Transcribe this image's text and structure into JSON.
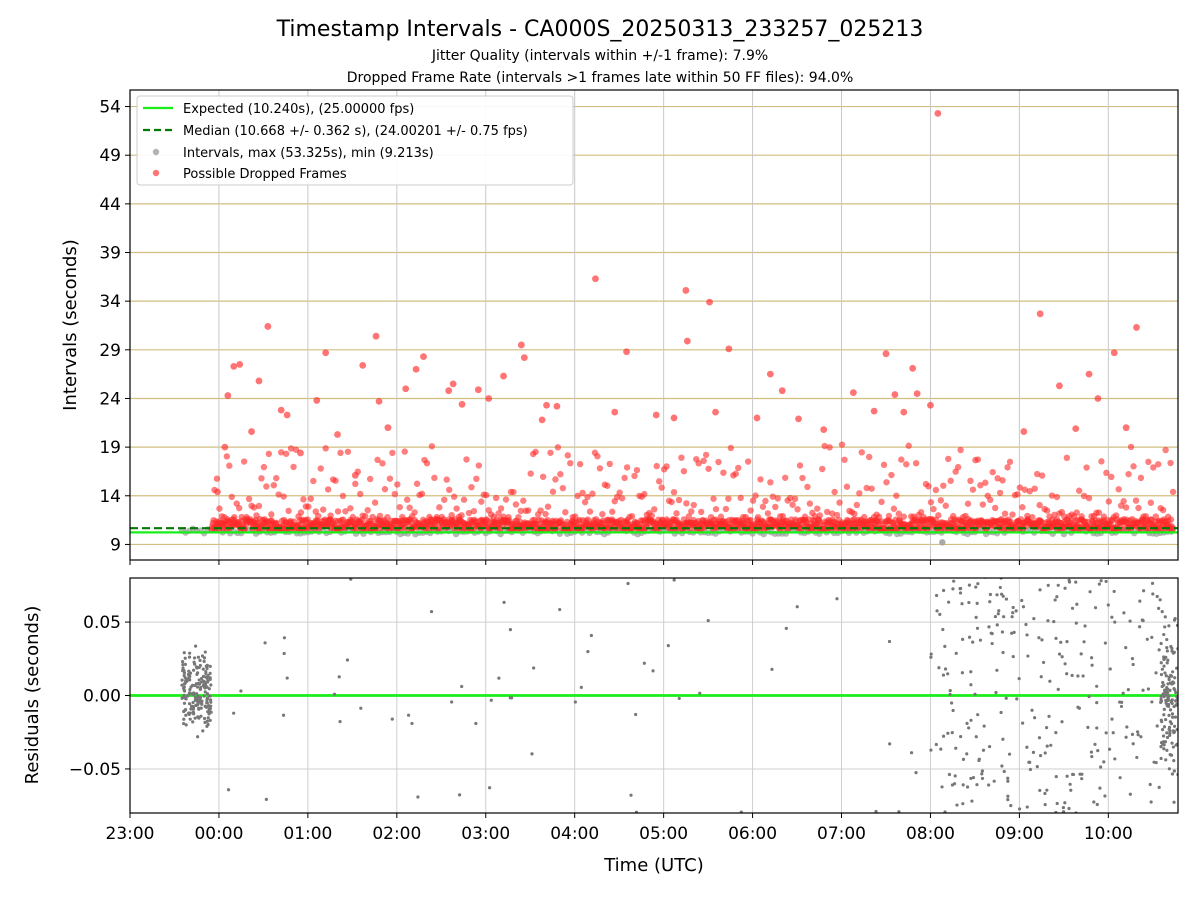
{
  "figure": {
    "title": "Timestamp Intervals - CA000S_20250313_233257_025213",
    "subtitle_jitter": "Jitter Quality (intervals within +/-1 frame): 7.9%",
    "subtitle_dropped": "Dropped Frame Rate (intervals >1 frames late within 50 FF files): 94.0%",
    "xlabel": "Time (UTC)"
  },
  "chart_data": [
    {
      "type": "scatter",
      "name": "intervals",
      "ylabel": "Intervals (seconds)",
      "ylim": [
        7.4,
        55.7
      ],
      "yticks": [
        9,
        14,
        19,
        24,
        29,
        34,
        39,
        44,
        49,
        54
      ],
      "ytick_labels": [
        "9",
        "14",
        "19",
        "24",
        "29",
        "34",
        "39",
        "44",
        "49",
        "54"
      ],
      "xlim": [
        "2025-03-13T23:00",
        "2025-03-14T10:47"
      ],
      "grid": true,
      "legend_position": "top-left",
      "legend": [
        "Expected (10.240s), (25.00000 fps)",
        "Median (10.668 +/- 0.362 s), (24.00201 +/- 0.75 fps)",
        "Intervals, max (53.325s), min (9.213s)",
        "Possible Dropped Frames"
      ],
      "expected_interval": 10.24,
      "median_interval": 10.668,
      "max_interval": 53.325,
      "min_interval": 9.213,
      "colors": {
        "expected": "#18ee18",
        "median": "#007a00",
        "intervals": "#a0a0a0",
        "dropped": "#ff2a2a",
        "gridline_y": "#d2be80",
        "gridline_x": "#c8c8c8"
      },
      "dropped_outliers": [
        {
          "t": "2025-03-13T23:59",
          "y": 14.4
        },
        {
          "t": "2025-03-14T00:04",
          "y": 19.0
        },
        {
          "t": "2025-03-14T00:06",
          "y": 24.3
        },
        {
          "t": "2025-03-14T00:10",
          "y": 27.3
        },
        {
          "t": "2025-03-14T00:14",
          "y": 27.5
        },
        {
          "t": "2025-03-14T00:22",
          "y": 20.6
        },
        {
          "t": "2025-03-14T00:27",
          "y": 25.8
        },
        {
          "t": "2025-03-14T00:33",
          "y": 31.4
        },
        {
          "t": "2025-03-14T00:42",
          "y": 22.8
        },
        {
          "t": "2025-03-14T00:46",
          "y": 22.3
        },
        {
          "t": "2025-03-14T00:55",
          "y": 18.4
        },
        {
          "t": "2025-03-14T01:06",
          "y": 23.8
        },
        {
          "t": "2025-03-14T01:12",
          "y": 28.7
        },
        {
          "t": "2025-03-14T01:20",
          "y": 20.3
        },
        {
          "t": "2025-03-14T01:32",
          "y": 16.1
        },
        {
          "t": "2025-03-14T01:37",
          "y": 27.4
        },
        {
          "t": "2025-03-14T01:46",
          "y": 30.4
        },
        {
          "t": "2025-03-14T01:48",
          "y": 23.7
        },
        {
          "t": "2025-03-14T01:54",
          "y": 21.0
        },
        {
          "t": "2025-03-14T02:06",
          "y": 25.0
        },
        {
          "t": "2025-03-14T02:13",
          "y": 27.0
        },
        {
          "t": "2025-03-14T02:18",
          "y": 28.3
        },
        {
          "t": "2025-03-14T02:35",
          "y": 24.8
        },
        {
          "t": "2025-03-14T02:38",
          "y": 25.5
        },
        {
          "t": "2025-03-14T02:44",
          "y": 23.4
        },
        {
          "t": "2025-03-14T02:55",
          "y": 24.9
        },
        {
          "t": "2025-03-14T03:02",
          "y": 24.0
        },
        {
          "t": "2025-03-14T03:12",
          "y": 26.3
        },
        {
          "t": "2025-03-14T03:24",
          "y": 29.5
        },
        {
          "t": "2025-03-14T03:26",
          "y": 28.2
        },
        {
          "t": "2025-03-14T03:38",
          "y": 21.8
        },
        {
          "t": "2025-03-14T03:41",
          "y": 23.3
        },
        {
          "t": "2025-03-14T03:48",
          "y": 23.2
        },
        {
          "t": "2025-03-14T04:14",
          "y": 36.3
        },
        {
          "t": "2025-03-14T04:27",
          "y": 22.6
        },
        {
          "t": "2025-03-14T04:35",
          "y": 28.8
        },
        {
          "t": "2025-03-14T04:55",
          "y": 22.3
        },
        {
          "t": "2025-03-14T05:07",
          "y": 22.0
        },
        {
          "t": "2025-03-14T05:15",
          "y": 35.1
        },
        {
          "t": "2025-03-14T05:16",
          "y": 29.9
        },
        {
          "t": "2025-03-14T05:31",
          "y": 33.9
        },
        {
          "t": "2025-03-14T05:35",
          "y": 22.6
        },
        {
          "t": "2025-03-14T05:44",
          "y": 29.1
        },
        {
          "t": "2025-03-14T06:03",
          "y": 22.0
        },
        {
          "t": "2025-03-14T06:12",
          "y": 26.5
        },
        {
          "t": "2025-03-14T06:20",
          "y": 24.8
        },
        {
          "t": "2025-03-14T06:31",
          "y": 21.9
        },
        {
          "t": "2025-03-14T06:48",
          "y": 20.8
        },
        {
          "t": "2025-03-14T07:08",
          "y": 24.6
        },
        {
          "t": "2025-03-14T07:22",
          "y": 22.7
        },
        {
          "t": "2025-03-14T07:30",
          "y": 28.6
        },
        {
          "t": "2025-03-14T07:36",
          "y": 24.4
        },
        {
          "t": "2025-03-14T07:42",
          "y": 22.6
        },
        {
          "t": "2025-03-14T07:48",
          "y": 27.1
        },
        {
          "t": "2025-03-14T07:51",
          "y": 24.5
        },
        {
          "t": "2025-03-14T08:00",
          "y": 23.3
        },
        {
          "t": "2025-03-14T08:05",
          "y": 53.3
        },
        {
          "t": "2025-03-14T09:03",
          "y": 20.6
        },
        {
          "t": "2025-03-14T09:14",
          "y": 32.7
        },
        {
          "t": "2025-03-14T09:27",
          "y": 25.3
        },
        {
          "t": "2025-03-14T09:38",
          "y": 20.9
        },
        {
          "t": "2025-03-14T09:47",
          "y": 26.5
        },
        {
          "t": "2025-03-14T09:53",
          "y": 24.0
        },
        {
          "t": "2025-03-14T10:04",
          "y": 28.7
        },
        {
          "t": "2025-03-14T10:12",
          "y": 21.0
        },
        {
          "t": "2025-03-14T10:19",
          "y": 31.3
        }
      ]
    },
    {
      "type": "scatter",
      "name": "residuals",
      "ylabel": "Residuals (seconds)",
      "ylim": [
        -0.08,
        0.08
      ],
      "yticks": [
        -0.05,
        0.0,
        0.05
      ],
      "ytick_labels": [
        "−0.05",
        "0.00",
        "0.05"
      ],
      "xticks": [
        "23:00",
        "00:00",
        "01:00",
        "02:00",
        "03:00",
        "04:00",
        "05:00",
        "06:00",
        "07:00",
        "08:00",
        "09:00",
        "10:00"
      ],
      "xlim": [
        "2025-03-13T23:00",
        "2025-03-14T10:47"
      ],
      "grid": true,
      "zero_line_color": "#18ee18",
      "point_color": "#777777"
    }
  ]
}
